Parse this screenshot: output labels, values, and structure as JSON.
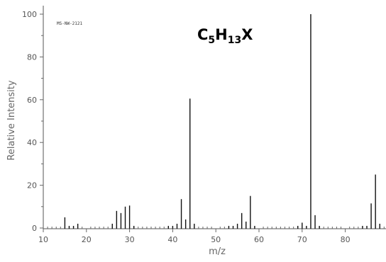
{
  "chart_data": {
    "type": "bar",
    "spectrum_code": "MS-NW-2121",
    "formula": {
      "c": "C",
      "c_sub": "5",
      "h": "H",
      "h_sub": "13",
      "x": "X"
    },
    "xlabel": "m/z",
    "ylabel": "Relative Intensity",
    "xlim": [
      10,
      90
    ],
    "ylim": [
      0,
      100
    ],
    "x_ticks": [
      10,
      20,
      30,
      40,
      50,
      60,
      70,
      80
    ],
    "x_tick_labels": [
      "10",
      "20",
      "30",
      "40",
      "50",
      "60",
      "70",
      "80"
    ],
    "y_ticks": [
      0,
      20,
      40,
      60,
      80,
      100
    ],
    "y_tick_labels": [
      "0",
      "20",
      "40",
      "60",
      "80",
      "100"
    ],
    "grid": false,
    "peaks": [
      {
        "mz": 15,
        "intensity": 5
      },
      {
        "mz": 16,
        "intensity": 1
      },
      {
        "mz": 17,
        "intensity": 1
      },
      {
        "mz": 18,
        "intensity": 2
      },
      {
        "mz": 26,
        "intensity": 2
      },
      {
        "mz": 27,
        "intensity": 8
      },
      {
        "mz": 28,
        "intensity": 7
      },
      {
        "mz": 29,
        "intensity": 10
      },
      {
        "mz": 30,
        "intensity": 10.5
      },
      {
        "mz": 31,
        "intensity": 1
      },
      {
        "mz": 39,
        "intensity": 1
      },
      {
        "mz": 40,
        "intensity": 1
      },
      {
        "mz": 41,
        "intensity": 2
      },
      {
        "mz": 42,
        "intensity": 13.5
      },
      {
        "mz": 43,
        "intensity": 4
      },
      {
        "mz": 44,
        "intensity": 60.5
      },
      {
        "mz": 45,
        "intensity": 2
      },
      {
        "mz": 53,
        "intensity": 1
      },
      {
        "mz": 54,
        "intensity": 1
      },
      {
        "mz": 55,
        "intensity": 2
      },
      {
        "mz": 56,
        "intensity": 7
      },
      {
        "mz": 57,
        "intensity": 3
      },
      {
        "mz": 58,
        "intensity": 15
      },
      {
        "mz": 59,
        "intensity": 1
      },
      {
        "mz": 69,
        "intensity": 1
      },
      {
        "mz": 70,
        "intensity": 2.5
      },
      {
        "mz": 71,
        "intensity": 1
      },
      {
        "mz": 72,
        "intensity": 100
      },
      {
        "mz": 73,
        "intensity": 6
      },
      {
        "mz": 74,
        "intensity": 1
      },
      {
        "mz": 84,
        "intensity": 1
      },
      {
        "mz": 85,
        "intensity": 1
      },
      {
        "mz": 86,
        "intensity": 11.5
      },
      {
        "mz": 87,
        "intensity": 25
      },
      {
        "mz": 88,
        "intensity": 2
      }
    ]
  }
}
